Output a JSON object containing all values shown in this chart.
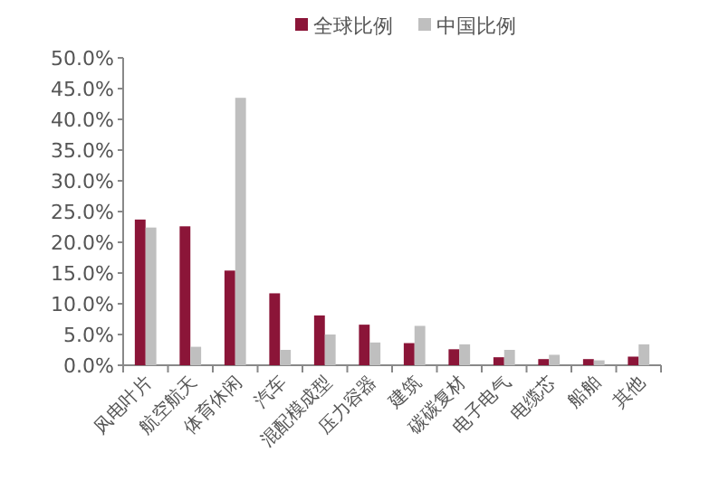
{
  "chart_data": {
    "type": "bar",
    "categories": [
      "风电叶片",
      "航空航天",
      "体育休闲",
      "汽车",
      "混配模成型",
      "压力容器",
      "建筑",
      "碳碳复材",
      "电子电气",
      "电缆芯",
      "船舶",
      "其他"
    ],
    "series": [
      {
        "name": "全球比例",
        "color": "#8b1538",
        "values": [
          23.7,
          22.6,
          15.4,
          11.7,
          8.1,
          6.6,
          3.6,
          2.6,
          1.3,
          1.0,
          1.0,
          1.4
        ]
      },
      {
        "name": "中国比例",
        "color": "#bfbfbf",
        "values": [
          22.4,
          3.0,
          43.5,
          2.5,
          5.0,
          3.7,
          6.4,
          3.4,
          2.5,
          1.7,
          0.8,
          3.4
        ]
      }
    ],
    "ylim": [
      0,
      50
    ],
    "yticks": [
      {
        "value": 0,
        "label": "0.0%"
      },
      {
        "value": 5,
        "label": "5.0%"
      },
      {
        "value": 10,
        "label": "10.0%"
      },
      {
        "value": 15,
        "label": "15.0%"
      },
      {
        "value": 20,
        "label": "20.0%"
      },
      {
        "value": 25,
        "label": "25.0%"
      },
      {
        "value": 30,
        "label": "30.0%"
      },
      {
        "value": 35,
        "label": "35.0%"
      },
      {
        "value": 40,
        "label": "40.0%"
      },
      {
        "value": 45,
        "label": "45.0%"
      },
      {
        "value": 50,
        "label": "50.0%"
      }
    ],
    "legend": "top",
    "grid": false
  }
}
